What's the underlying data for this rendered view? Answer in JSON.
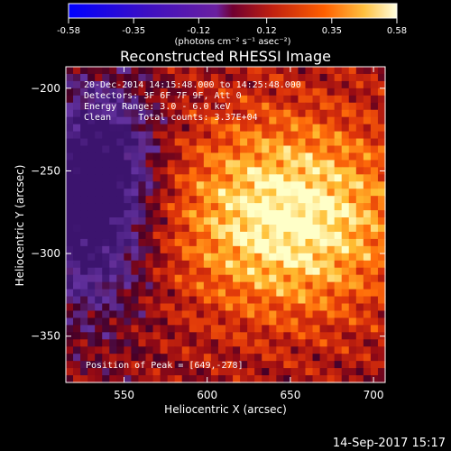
{
  "chart_data": {
    "type": "heatmap",
    "title": "Reconstructed RHESSI Image",
    "xlabel": "Heliocentric X (arcsec)",
    "ylabel": "Heliocentric Y (arcsec)",
    "xlim": [
      515,
      707
    ],
    "ylim": [
      -378,
      -187
    ],
    "x_ticks": [
      550,
      600,
      650,
      700
    ],
    "y_ticks": [
      -200,
      -250,
      -300,
      -350
    ],
    "colorbar": {
      "ticks": [
        "-0.58",
        "-0.35",
        "-0.12",
        "0.12",
        "0.35",
        "0.58"
      ],
      "range": [
        -0.58,
        0.58
      ],
      "units": "(photons cm⁻² s⁻¹ asec⁻²)"
    },
    "annotations": [
      "20-Dec-2014 14:15:48.000 to 14:25:48.000",
      "Detectors: 3F 6F 7F 9F, Att 0",
      "Energy Range: 3.0 - 6.0 keV",
      "Clean     Total counts: 3.37E+04"
    ],
    "peak_label": "Position of Peak = [649,-278]",
    "peak": {
      "x": 649,
      "y": -278
    },
    "timestamp": "14-Sep-2017 15:17"
  }
}
